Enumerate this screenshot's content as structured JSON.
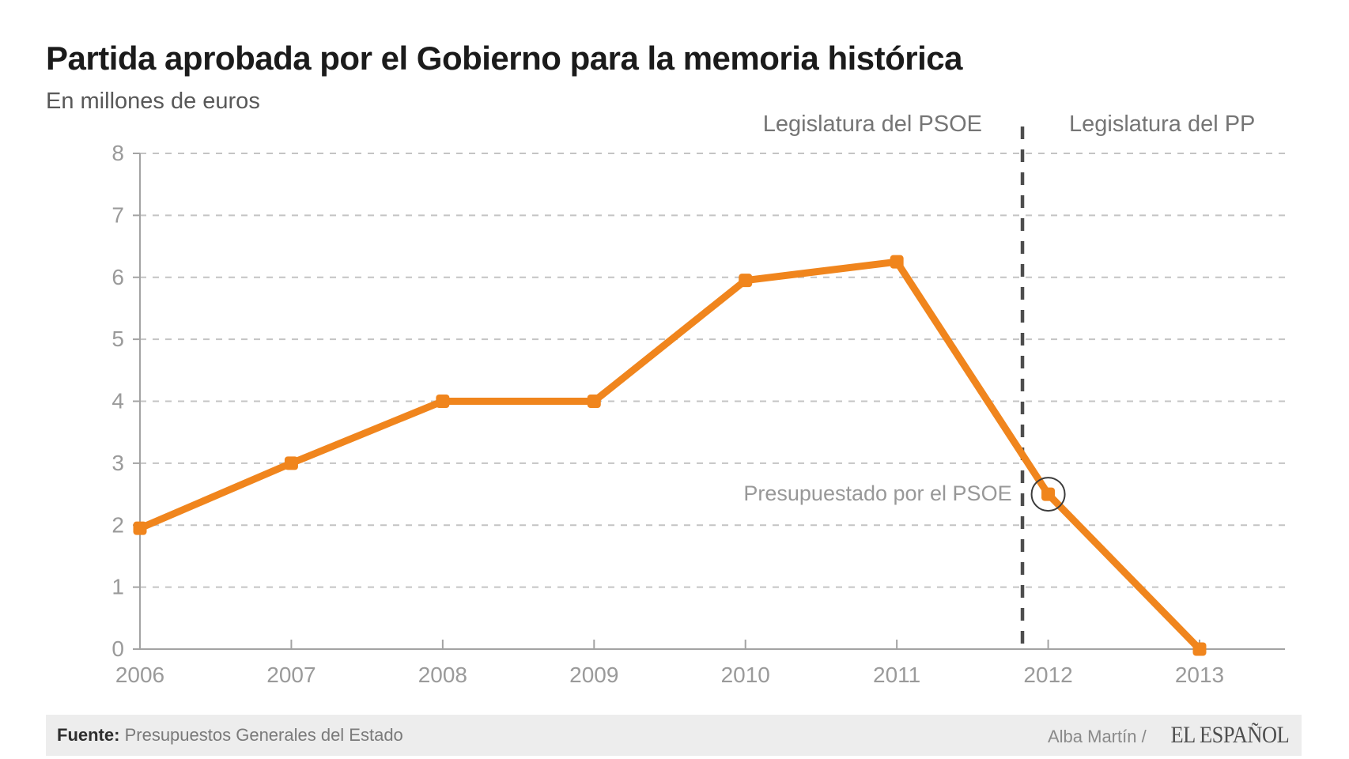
{
  "header": {
    "title": "Partida aprobada por el Gobierno para la memoria histórica",
    "subtitle": "En millones de euros"
  },
  "annotations": {
    "left_period_label": "Legislatura del PSOE",
    "right_period_label": "Legislatura del PP",
    "point_note": "Presupuestado por el PSOE"
  },
  "chart_data": {
    "type": "line",
    "title": "Partida aprobada por el Gobierno para la memoria histórica",
    "ylabel": "En millones de euros",
    "x": [
      2006,
      2007,
      2008,
      2009,
      2010,
      2011,
      2012,
      2013
    ],
    "values": [
      1.95,
      3,
      4,
      4,
      5.95,
      6.25,
      2.5,
      0
    ],
    "xlim": [
      2006,
      2013.55
    ],
    "ylim": [
      0,
      8
    ],
    "yticks": [
      0,
      1,
      2,
      3,
      4,
      5,
      6,
      7,
      8
    ],
    "grid": "horizontal-dashed",
    "line_color": "#F0851D",
    "axis_color": "#a3a3a3",
    "grid_color": "#c4c4c4",
    "tick_label_color": "#9a9a9a",
    "separator": {
      "x": 2011.83,
      "style": "vertical-dashed",
      "color": "#4d4d4d",
      "left_label": "Legislatura del PSOE",
      "right_label": "Legislatura del PP"
    },
    "highlight": {
      "x": 2012,
      "value": 2.5,
      "marker": "circle-outline",
      "circle_color": "#3c3c3c",
      "label": "Presupuestado por el PSOE"
    },
    "legend_position": "none"
  },
  "footer": {
    "source_label": "Fuente:",
    "source": "Presupuestos Generales del Estado",
    "credit": "Alba Martín /",
    "brand": "EL ESPAÑOL"
  }
}
